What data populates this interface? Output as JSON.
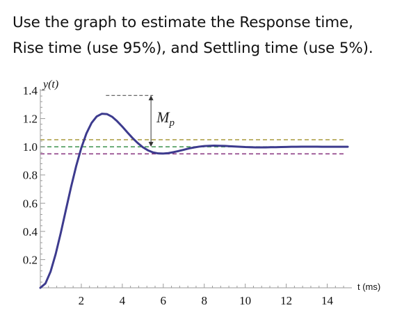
{
  "question": {
    "line1": "Use the graph to estimate the Response time,",
    "line2": "Rise time (use 95%), and Settling time (use 5%)."
  },
  "chart_data": {
    "type": "line",
    "title": "",
    "ylabel": "y(t)",
    "xlabel": "t (ms)",
    "xlim": [
      0,
      15
    ],
    "ylim": [
      0,
      1.4
    ],
    "x_ticks": [
      2,
      4,
      6,
      8,
      10,
      12,
      14
    ],
    "x_tick_labels": [
      "2",
      "4",
      "6",
      "8",
      "10",
      "12",
      "14"
    ],
    "y_ticks": [
      0.2,
      0.4,
      0.6,
      0.8,
      1.0,
      1.2,
      1.4
    ],
    "y_tick_labels": [
      "0.2",
      "0.4",
      "0.6",
      "0.8",
      "1.0",
      "1.2",
      "1.4"
    ],
    "grid": false,
    "series": [
      {
        "color": "#3d3b8e",
        "x": [
          0,
          0.25,
          0.5,
          0.75,
          1.0,
          1.25,
          1.5,
          1.75,
          2.0,
          2.25,
          2.5,
          2.75,
          3.0,
          3.25,
          3.5,
          3.75,
          4.0,
          4.25,
          4.5,
          4.75,
          5.0,
          5.25,
          5.5,
          5.75,
          6.0,
          6.25,
          6.5,
          6.75,
          7.0,
          7.25,
          7.5,
          7.75,
          8.0,
          8.25,
          8.5,
          8.75,
          9.0,
          9.25,
          9.5,
          9.75,
          10.0,
          10.25,
          10.5,
          10.75,
          11.0,
          11.25,
          11.5,
          11.75,
          12.0,
          12.25,
          12.5,
          12.75,
          13.0,
          13.25,
          13.5,
          13.75,
          14.0,
          14.25,
          14.5,
          14.75,
          15.0
        ],
        "y": [
          0.0,
          0.031,
          0.115,
          0.24,
          0.391,
          0.554,
          0.715,
          0.864,
          0.992,
          1.095,
          1.169,
          1.215,
          1.234,
          1.232,
          1.213,
          1.181,
          1.143,
          1.102,
          1.062,
          1.027,
          0.997,
          0.975,
          0.96,
          0.953,
          0.952,
          0.955,
          0.962,
          0.97,
          0.979,
          0.988,
          0.995,
          1.001,
          1.005,
          1.007,
          1.008,
          1.007,
          1.006,
          1.004,
          1.002,
          1.0,
          0.998,
          0.997,
          0.996,
          0.996,
          0.996,
          0.997,
          0.997,
          0.998,
          0.999,
          1.0,
          1.0,
          1.001,
          1.001,
          1.001,
          1.001,
          1.0,
          1.0,
          1.0,
          1.0,
          1.0,
          1.0
        ]
      }
    ],
    "reference_lines": [
      {
        "y": 1.05,
        "color": "#a89a3c",
        "style": "dashed"
      },
      {
        "y": 1.0,
        "color": "#4a9a5a",
        "style": "dashed"
      },
      {
        "y": 0.95,
        "color": "#8e3f86",
        "style": "dashed"
      }
    ],
    "annotations": [
      {
        "label": "M",
        "subscript": "p",
        "x": 5.4,
        "y_from": 1.0,
        "y_to": 1.364,
        "peak_x": 3.2
      }
    ]
  }
}
